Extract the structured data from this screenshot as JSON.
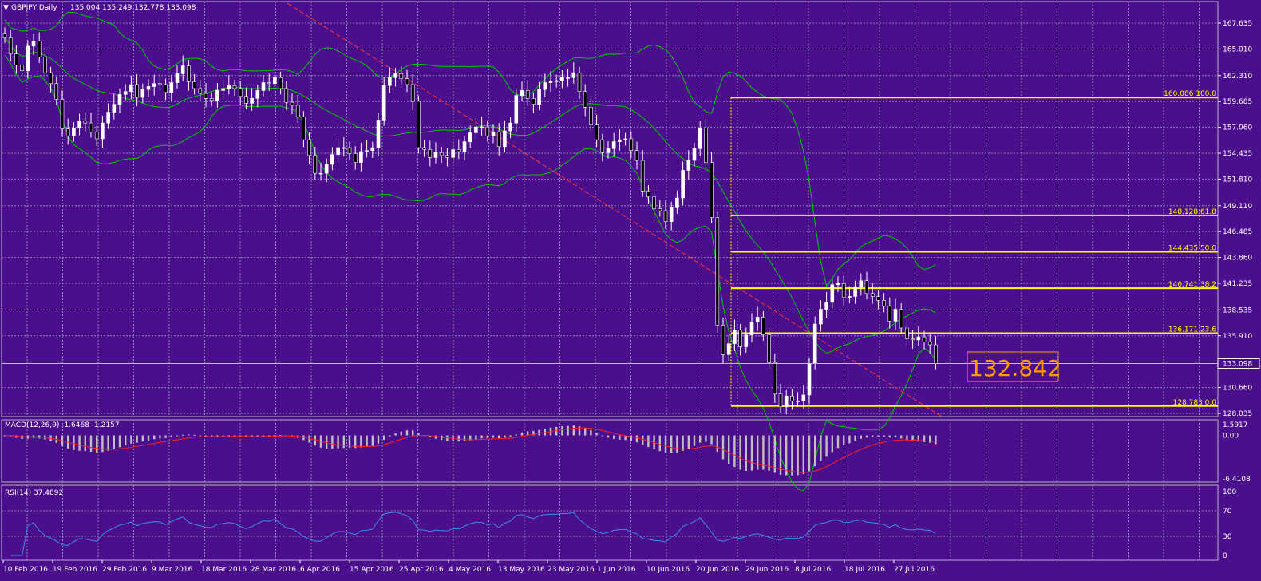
{
  "header": {
    "arrow_icon": "triangle-down-icon",
    "symbol_label": "GBPJPY,Daily",
    "ohlc_text": "135.004 135.249 132.778 133.098"
  },
  "colors": {
    "background": "#4b0e8c",
    "grid": "#8a8ab4",
    "bull_candle": "#ffffff",
    "bear_candle": "#000000",
    "wick": "#ffffff",
    "bands": "#00c800",
    "trendline": "#ff3333",
    "fibonacci": "#ffff00",
    "macd_hist": "#c0c0c0",
    "macd_signal": "#ff2020",
    "rsi": "#3a8fe0",
    "big_price": "#ff9900"
  },
  "price_panel": {
    "current_price_label": "133.098",
    "big_price_label": "132.842",
    "y_ticks": [
      "167.635",
      "165.010",
      "162.310",
      "159.685",
      "157.060",
      "154.435",
      "151.810",
      "149.110",
      "146.485",
      "143.860",
      "141.235",
      "138.535",
      "135.910",
      "133.098",
      "130.660",
      "128.035"
    ]
  },
  "fibonacci": [
    {
      "price": 160.086,
      "label": "160.086 100.0"
    },
    {
      "price": 148.128,
      "label": "148.128 61.8"
    },
    {
      "price": 144.435,
      "label": "144.435 50.0"
    },
    {
      "price": 140.741,
      "label": "140.741 38.2"
    },
    {
      "price": 136.171,
      "label": "136.171 23.6"
    },
    {
      "price": 128.783,
      "label": "128.783 0.0"
    }
  ],
  "macd_panel": {
    "title": "MACD(12,26,9) -1.6468 -1.2157",
    "y_ticks": [
      "1.5917",
      "0.00",
      "-6.4108"
    ]
  },
  "rsi_panel": {
    "title": "RSI(14) 37.4892",
    "y_ticks": [
      "100",
      "70",
      "30",
      "0"
    ]
  },
  "x_ticks": [
    "10 Feb 2016",
    "19 Feb 2016",
    "29 Feb 2016",
    "9 Mar 2016",
    "18 Mar 2016",
    "28 Mar 2016",
    "6 Apr 2016",
    "15 Apr 2016",
    "25 Apr 2016",
    "4 May 2016",
    "13 May 2016",
    "23 May 2016",
    "1 Jun 2016",
    "10 Jun 2016",
    "20 Jun 2016",
    "29 Jun 2016",
    "8 Jul 2016",
    "18 Jul 2016",
    "27 Jul 2016"
  ],
  "chart_data": {
    "type": "candlestick",
    "symbol": "GBPJPY",
    "timeframe": "Daily",
    "ylim": [
      128.035,
      167.635
    ],
    "grid": true,
    "close": [
      166.2,
      164.5,
      163.4,
      162.8,
      165.3,
      165.8,
      164.2,
      162.6,
      161.5,
      159.9,
      156.9,
      156.2,
      157.0,
      157.7,
      157.5,
      156.6,
      155.9,
      157.5,
      158.6,
      159.4,
      160.4,
      160.7,
      161.4,
      160.1,
      160.9,
      161.2,
      161.5,
      161.4,
      160.6,
      161.6,
      162.5,
      163.3,
      161.7,
      161.0,
      160.5,
      160.0,
      159.8,
      160.8,
      161.0,
      161.3,
      161.0,
      160.2,
      159.5,
      160.0,
      160.8,
      161.6,
      161.5,
      162.1,
      161.0,
      159.6,
      159.3,
      158.1,
      155.8,
      154.2,
      152.4,
      152.4,
      153.3,
      154.3,
      155.0,
      155.0,
      154.4,
      153.5,
      154.6,
      154.7,
      155.0,
      157.8,
      161.3,
      162.1,
      162.5,
      162.0,
      161.4,
      159.7,
      155.0,
      154.8,
      154.0,
      154.5,
      154.2,
      154.0,
      154.8,
      154.6,
      155.6,
      156.5,
      157.1,
      157.1,
      156.2,
      156.6,
      155.1,
      156.7,
      157.5,
      160.3,
      160.8,
      160.0,
      159.4,
      160.9,
      161.6,
      161.7,
      161.8,
      162.1,
      162.1,
      162.6,
      160.7,
      159.1,
      157.3,
      155.8,
      154.5,
      154.9,
      155.6,
      155.8,
      155.9,
      154.7,
      153.7,
      150.6,
      150.0,
      148.8,
      148.6,
      147.5,
      148.9,
      149.9,
      152.7,
      153.7,
      154.9,
      157.0,
      153.5,
      147.9,
      137.0,
      134.0,
      135.1,
      136.5,
      134.8,
      136.0,
      137.3,
      137.8,
      136.0,
      133.2,
      130.0,
      128.7,
      129.8,
      129.3,
      129.3,
      129.9,
      133.1,
      137.1,
      138.6,
      139.3,
      141.1,
      141.2,
      139.8,
      139.9,
      140.9,
      141.5,
      140.2,
      139.9,
      139.5,
      138.9,
      137.4,
      138.6,
      136.7,
      135.6,
      135.5,
      135.8,
      135.3,
      135.0,
      133.1
    ],
    "overlays": [
      "Bollinger Bands",
      "trendline",
      "Fibonacci retracement"
    ],
    "macd": {
      "params": "12,26,9",
      "main": -1.6468,
      "signal": -1.2157,
      "ylim": [
        -6.4108,
        1.5917
      ]
    },
    "rsi": {
      "params": "14",
      "value": 37.4892,
      "levels": [
        30,
        70
      ],
      "ylim": [
        0,
        100
      ]
    }
  }
}
